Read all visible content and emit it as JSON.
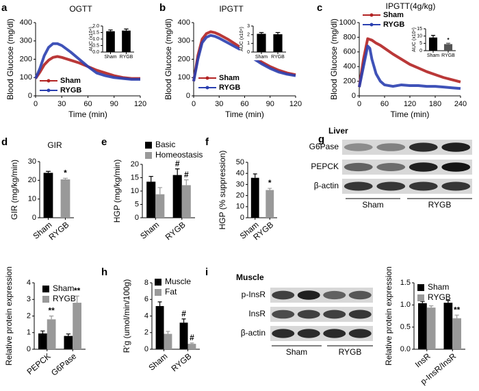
{
  "chart_data": [
    {
      "type": "line",
      "panel": "a",
      "title": "OGTT",
      "ylabel": "Blood Glucose (mg/dl)",
      "xlabel": "Time (min)",
      "x": [
        0,
        5,
        10,
        15,
        20,
        25,
        30,
        40,
        50,
        60,
        70,
        80,
        90,
        100,
        110,
        120
      ],
      "xlim": [
        0,
        120
      ],
      "xticks": [
        0,
        30,
        60,
        90,
        120
      ],
      "ylim": [
        0,
        400
      ],
      "yticks": [
        0,
        100,
        200,
        300,
        400
      ],
      "series": [
        {
          "name": "Sham",
          "color": "#b22222",
          "values": [
            95,
            130,
            170,
            195,
            210,
            215,
            210,
            195,
            180,
            160,
            140,
            125,
            110,
            100,
            95,
            95
          ]
        },
        {
          "name": "RYGB",
          "color": "#2a3fb0",
          "values": [
            95,
            150,
            220,
            265,
            285,
            285,
            275,
            240,
            200,
            160,
            125,
            110,
            100,
            95,
            90,
            90
          ]
        }
      ],
      "inset": {
        "type": "bar",
        "ylabel": "AUC (x10⁴)",
        "categories": [
          "Sham",
          "RYGB"
        ],
        "values": [
          1.6,
          1.65
        ],
        "errors": [
          0.1,
          0.12
        ],
        "colors": [
          "#000000",
          "#000000"
        ],
        "ylim": [
          0,
          2
        ],
        "yticks": [
          {
            "value": 0,
            "label": "0.0"
          },
          {
            "value": 0.5,
            "label": "0.5"
          },
          {
            "value": 1,
            "label": "1.0"
          },
          {
            "value": 1.5,
            "label": "1.5"
          },
          {
            "value": 2,
            "label": "2.0"
          }
        ]
      }
    },
    {
      "type": "line",
      "panel": "b",
      "title": "IPGTT",
      "ylabel": "Blood Glucose (mg/dl)",
      "xlabel": "Time (min)",
      "x": [
        0,
        5,
        10,
        15,
        20,
        25,
        30,
        40,
        50,
        60,
        70,
        80,
        90,
        100,
        110,
        120
      ],
      "xlim": [
        0,
        120
      ],
      "xticks": [
        0,
        30,
        60,
        90,
        120
      ],
      "ylim": [
        0,
        400
      ],
      "yticks": [
        0,
        100,
        200,
        300,
        400
      ],
      "series": [
        {
          "name": "Sham",
          "color": "#b22222",
          "values": [
            80,
            220,
            310,
            340,
            350,
            345,
            335,
            310,
            280,
            250,
            215,
            185,
            160,
            140,
            125,
            115
          ]
        },
        {
          "name": "RYGB",
          "color": "#2a3fb0",
          "values": [
            80,
            200,
            290,
            320,
            330,
            325,
            315,
            290,
            265,
            240,
            205,
            175,
            150,
            130,
            118,
            110
          ]
        }
      ],
      "inset": {
        "type": "bar",
        "ylabel": "AUC (x10⁴)",
        "categories": [
          "Sham",
          "RYGB"
        ],
        "values": [
          2.1,
          2.05
        ],
        "errors": [
          0.15,
          0.2
        ],
        "colors": [
          "#000000",
          "#000000"
        ],
        "ylim": [
          0,
          3
        ],
        "yticks": [
          0,
          1,
          2,
          3
        ]
      }
    },
    {
      "type": "line",
      "panel": "c",
      "title": "IPGTT(4g/kg)",
      "ylabel": "Blood Glucose  (mg/dl)",
      "xlabel": "Time (min)",
      "x": [
        0,
        10,
        20,
        25,
        30,
        40,
        50,
        60,
        80,
        100,
        120,
        140,
        160,
        180,
        200,
        220,
        240
      ],
      "xlim": [
        0,
        240
      ],
      "xticks": [
        0,
        60,
        120,
        180,
        240
      ],
      "ylim": [
        0,
        1000
      ],
      "yticks": [
        0,
        200,
        400,
        600,
        800,
        1000
      ],
      "series": [
        {
          "name": "Sham",
          "color": "#b22222",
          "values": [
            120,
            500,
            780,
            770,
            760,
            720,
            690,
            650,
            570,
            500,
            430,
            380,
            330,
            290,
            250,
            220,
            190
          ]
        },
        {
          "name": "RYGB",
          "color": "#2a3fb0",
          "values": [
            120,
            400,
            680,
            650,
            500,
            300,
            200,
            150,
            130,
            150,
            140,
            140,
            130,
            130,
            120,
            110,
            100
          ]
        }
      ],
      "inset": {
        "type": "bar",
        "ylabel": "AUC (x10⁴)",
        "categories": [
          "Sham",
          "RYGB"
        ],
        "values": [
          9,
          4.5
        ],
        "errors": [
          1.5,
          0.6
        ],
        "colors": [
          "#000000",
          "#555555"
        ],
        "annotations": [
          null,
          "*"
        ],
        "ylim": [
          0,
          15
        ],
        "yticks": [
          0,
          5,
          10,
          15
        ]
      }
    },
    {
      "type": "bar",
      "panel": "d",
      "title": "GIR",
      "ylabel": "GIR  (mg/kg/min)",
      "categories": [
        "Sham",
        "RYGB"
      ],
      "values": [
        24,
        20.5
      ],
      "errors": [
        0.8,
        0.6
      ],
      "colors": [
        "#000000",
        "#999999"
      ],
      "annotations": [
        null,
        "*"
      ],
      "ylim": [
        0,
        30
      ],
      "yticks": [
        0,
        10,
        20,
        30
      ]
    },
    {
      "type": "bar",
      "panel": "e",
      "ylabel": "HGP  (mg/kg/min)",
      "categories": [
        "Sham",
        "RYGB"
      ],
      "series": [
        {
          "name": "Basic",
          "color": "#000000",
          "values": [
            13.5,
            16
          ],
          "errors": [
            2,
            2.3
          ],
          "annotations": [
            null,
            "#"
          ]
        },
        {
          "name": "Homeostasis",
          "color": "#999999",
          "values": [
            8.8,
            12.2
          ],
          "errors": [
            2.5,
            2
          ],
          "annotations": [
            null,
            "#"
          ]
        }
      ],
      "ylim": [
        0,
        20
      ],
      "yticks": [
        0,
        5,
        10,
        15,
        20
      ]
    },
    {
      "type": "bar",
      "panel": "f",
      "ylabel": "HGP  (% suppression)",
      "categories": [
        "Sham",
        "RYGB"
      ],
      "values": [
        36,
        25
      ],
      "errors": [
        3.5,
        1.5
      ],
      "colors": [
        "#000000",
        "#999999"
      ],
      "annotations": [
        null,
        "*"
      ],
      "ylim": [
        0,
        50
      ],
      "yticks": [
        0,
        10,
        20,
        30,
        40,
        50
      ]
    },
    {
      "type": "bar",
      "ylabel": "Relative protein expression",
      "categories": [
        "PEPCK",
        "G6Pase"
      ],
      "series": [
        {
          "name": "Sham",
          "color": "#000000",
          "values": [
            0.95,
            0.8
          ],
          "errors": [
            0.15,
            0.12
          ]
        },
        {
          "name": "RYGB",
          "color": "#999999",
          "values": [
            1.8,
            2.8
          ],
          "errors": [
            0.2,
            0.4
          ],
          "annotations": [
            "**",
            "**"
          ]
        }
      ],
      "ylim": [
        0,
        4
      ],
      "yticks": [
        0,
        1,
        2,
        3,
        4
      ]
    },
    {
      "type": "bar",
      "panel": "h",
      "ylabel": "R'g  (umol/min/100g)",
      "categories": [
        "Sham",
        "RYGB"
      ],
      "series": [
        {
          "name": "Muscle",
          "color": "#000000",
          "values": [
            5.2,
            3.2
          ],
          "errors": [
            0.5,
            0.45
          ],
          "annotations": [
            null,
            "#"
          ]
        },
        {
          "name": "Fat",
          "color": "#999999",
          "values": [
            1.85,
            0.65
          ],
          "errors": [
            0.3,
            0.1
          ],
          "annotations": [
            null,
            "#"
          ]
        }
      ],
      "ylim": [
        0,
        8
      ],
      "yticks": [
        0,
        2,
        4,
        6,
        8
      ]
    },
    {
      "type": "bar",
      "ylabel": "Relative protein expression",
      "categories": [
        "InsR",
        "p-InsR/InsR"
      ],
      "series": [
        {
          "name": "Sham",
          "color": "#000000",
          "values": [
            1.04,
            1.05
          ],
          "errors": [
            0.04,
            0.05
          ]
        },
        {
          "name": "RYGB",
          "color": "#999999",
          "values": [
            0.94,
            0.7
          ],
          "errors": [
            0.04,
            0.07
          ],
          "annotations": [
            null,
            "**"
          ]
        }
      ],
      "ylim": [
        0,
        1.5
      ],
      "yticks": [
        {
          "value": 0,
          "label": "0.0"
        },
        {
          "value": 0.5,
          "label": "0.5"
        },
        {
          "value": 1,
          "label": "1.0"
        },
        {
          "value": 1.5,
          "label": "1.5"
        }
      ]
    }
  ],
  "blots": [
    {
      "panel": "g",
      "tissue": "Liver",
      "rows": [
        "G6Pase",
        "PEPCK",
        "β-actin"
      ],
      "groups": [
        "Sham",
        "RYGB"
      ]
    },
    {
      "panel": "i",
      "tissue": "Muscle",
      "rows": [
        "p-InsR",
        "InsR",
        "β-actin"
      ],
      "groups": [
        "Sham",
        "RYGB"
      ]
    }
  ]
}
